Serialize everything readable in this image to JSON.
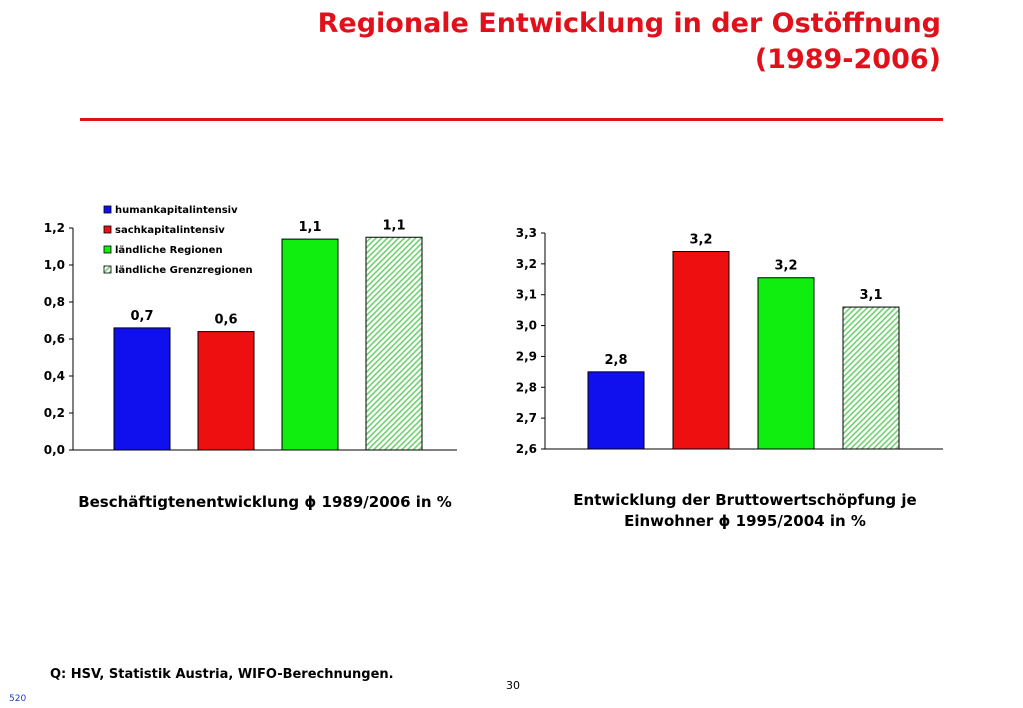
{
  "page": {
    "title_line1": "Regionale Entwicklung in der Ostöffnung",
    "title_line2": "(1989-2006)",
    "source": "Q: HSV, Statistik Austria, WIFO-Berechnungen.",
    "page_number": "30",
    "slide_id": "520"
  },
  "colors": {
    "title": "#e0111a",
    "blue": "#1010ee",
    "red": "#ee1010",
    "green": "#10ee10",
    "hatch_green": "#6fd16f"
  },
  "chart_data": [
    {
      "type": "bar",
      "caption": "Beschäftigtenentwicklung ϕ 1989/2006 in %",
      "categories": [
        "humankapitalintensiv",
        "sachkapitalintensiv",
        "ländliche Regionen",
        "ländliche Grenzregionen"
      ],
      "values": [
        0.66,
        0.64,
        1.14,
        1.15
      ],
      "data_labels": [
        "0,7",
        "0,6",
        "1,1",
        "1,1"
      ],
      "ylim": [
        0,
        1.2
      ],
      "yticks": [
        "0,0",
        "0,2",
        "0,4",
        "0,6",
        "0,8",
        "1,0",
        "1,2"
      ],
      "legend": [
        {
          "label": "humankapitalintensiv",
          "color": "#1010ee",
          "hatch": false
        },
        {
          "label": "sachkapitalintensiv",
          "color": "#ee1010",
          "hatch": false
        },
        {
          "label": "ländliche Regionen",
          "color": "#10ee10",
          "hatch": false
        },
        {
          "label": "ländliche Grenzregionen",
          "color": "#6fd16f",
          "hatch": true
        }
      ],
      "legend_position": "top-left",
      "grid": false,
      "xlabel": "",
      "ylabel": ""
    },
    {
      "type": "bar",
      "caption_line1": "Entwicklung der Bruttowertschöpfung je",
      "caption_line2": "Einwohner ϕ 1995/2004 in %",
      "categories": [
        "humankapitalintensiv",
        "sachkapitalintensiv",
        "ländliche Regionen",
        "ländliche Grenzregionen"
      ],
      "values": [
        2.85,
        3.24,
        3.155,
        3.06
      ],
      "data_labels": [
        "2,8",
        "3,2",
        "3,2",
        "3,1"
      ],
      "ylim": [
        2.6,
        3.3
      ],
      "yticks": [
        "2,6",
        "2,7",
        "2,8",
        "2,9",
        "3,0",
        "3,1",
        "3,2",
        "3,3"
      ],
      "grid": false,
      "xlabel": "",
      "ylabel": ""
    }
  ]
}
